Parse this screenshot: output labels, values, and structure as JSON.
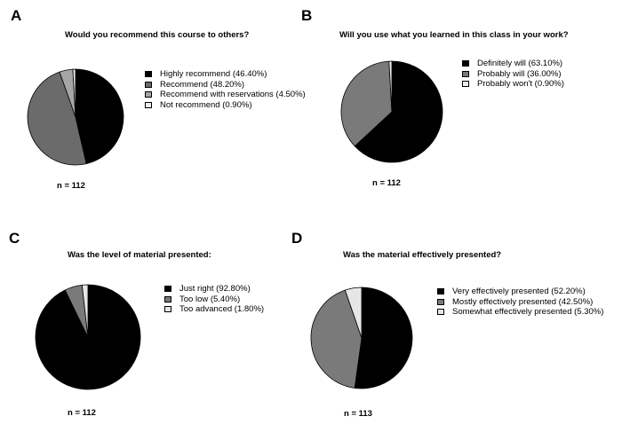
{
  "chart_data": [
    {
      "type": "pie",
      "panel_label": "A",
      "title": "Would you recommend this course to others?",
      "categories": [
        "Highly recommend",
        "Recommend",
        "Recommend with reservations",
        "Not recommend"
      ],
      "values": [
        46.4,
        48.2,
        4.5,
        0.9
      ],
      "legend_labels": [
        "Highly recommend (46.40%)",
        "Recommend (48.20%)",
        "Recommend with reservations (4.50%)",
        "Not recommend (0.90%)"
      ],
      "colors": [
        "#000000",
        "#6b6b6b",
        "#a6a6a6",
        "#eeeeee"
      ],
      "n_label": "n = 112",
      "legend_position": "right"
    },
    {
      "type": "pie",
      "panel_label": "B",
      "title": "Will you use what you learned in this class in your work?",
      "categories": [
        "Definitely will",
        "Probably will",
        "Probably won't"
      ],
      "values": [
        63.1,
        36.0,
        0.9
      ],
      "legend_labels": [
        "Definitely will (63.10%)",
        "Probably will (36.00%)",
        "Probably won't (0.90%)"
      ],
      "colors": [
        "#000000",
        "#7a7a7a",
        "#eeeeee"
      ],
      "n_label": "n = 112",
      "legend_position": "right"
    },
    {
      "type": "pie",
      "panel_label": "C",
      "title": "Was the level of material presented:",
      "categories": [
        "Just right",
        "Too low",
        "Too advanced"
      ],
      "values": [
        92.8,
        5.4,
        1.8
      ],
      "legend_labels": [
        "Just right (92.80%)",
        "Too low (5.40%)",
        "Too advanced (1.80%)"
      ],
      "colors": [
        "#000000",
        "#7a7a7a",
        "#e6e6e6"
      ],
      "n_label": "n = 112",
      "legend_position": "right"
    },
    {
      "type": "pie",
      "panel_label": "D",
      "title": "Was the material effectively presented?",
      "categories": [
        "Very effectively presented",
        "Mostly effectively presented",
        "Somewhat effectively presented"
      ],
      "values": [
        52.2,
        42.5,
        5.3
      ],
      "legend_labels": [
        "Very effectively presented (52.20%)",
        "Mostly effectively presented (42.50%)",
        "Somewhat effectively presented (5.30%)"
      ],
      "colors": [
        "#000000",
        "#7a7a7a",
        "#e6e6e6"
      ],
      "n_label": "n = 113",
      "legend_position": "right"
    }
  ]
}
